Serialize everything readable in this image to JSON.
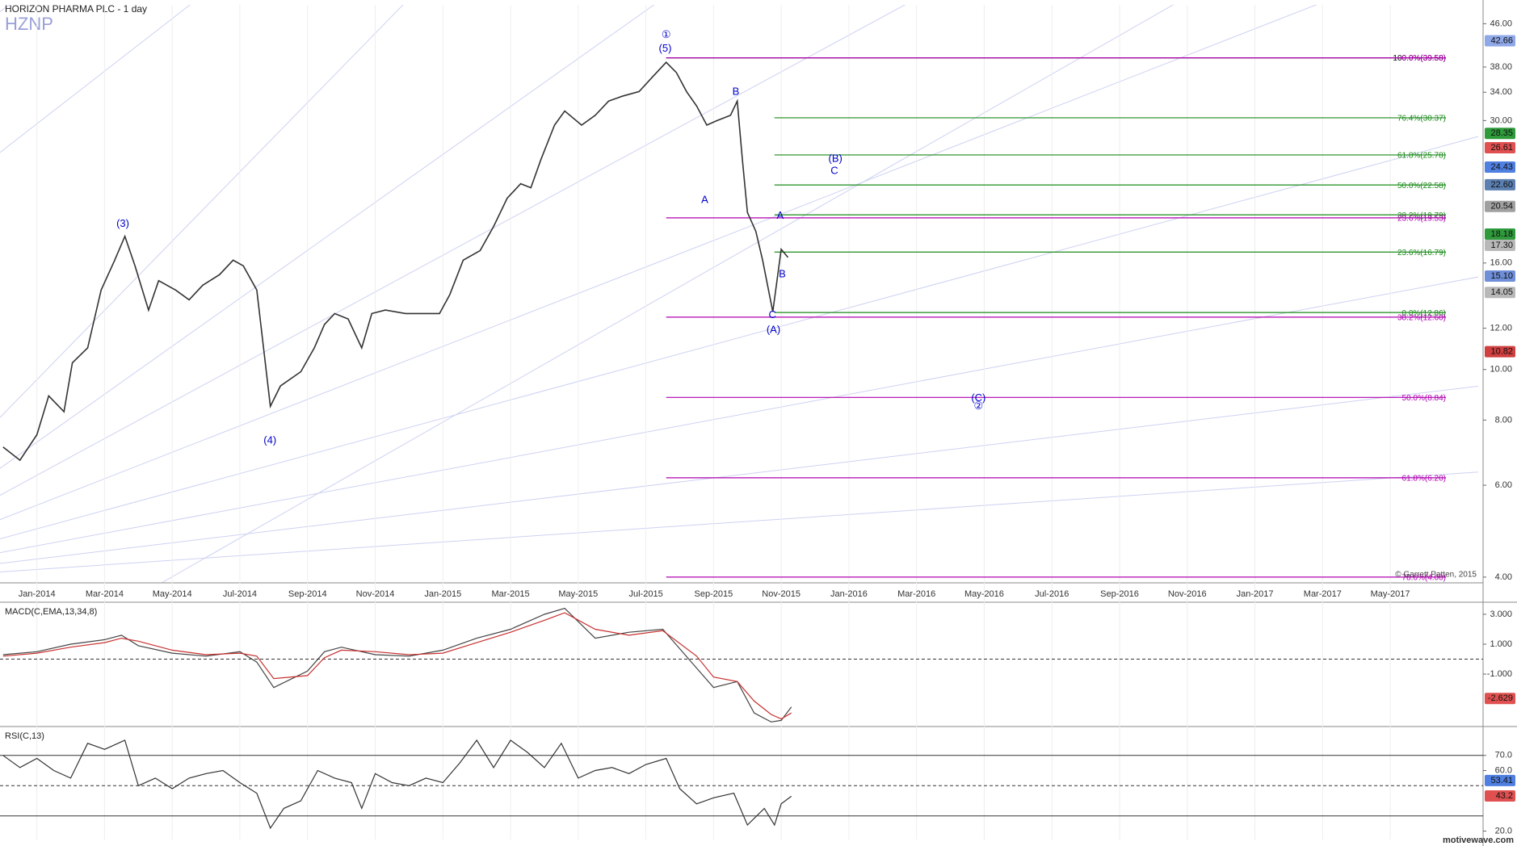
{
  "header": {
    "title": "HORIZON PHARMA PLC - 1 day",
    "symbol": "HZNP"
  },
  "chart_data": [
    {
      "type": "line",
      "log_scale": true,
      "xlim": [
        -1.09,
        42.6
      ],
      "xticks": [
        {
          "value": 0,
          "label": "Jan-2014"
        },
        {
          "value": 2,
          "label": "Mar-2014"
        },
        {
          "value": 4,
          "label": "May-2014"
        },
        {
          "value": 6,
          "label": "Jul-2014"
        },
        {
          "value": 8,
          "label": "Sep-2014"
        },
        {
          "value": 10,
          "label": "Nov-2014"
        },
        {
          "value": 12,
          "label": "Jan-2015"
        },
        {
          "value": 14,
          "label": "Mar-2015"
        },
        {
          "value": 16,
          "label": "May-2015"
        },
        {
          "value": 18,
          "label": "Jul-2015"
        },
        {
          "value": 20,
          "label": "Sep-2015"
        },
        {
          "value": 22,
          "label": "Nov-2015"
        },
        {
          "value": 24,
          "label": "Jan-2016"
        },
        {
          "value": 26,
          "label": "Mar-2016"
        },
        {
          "value": 28,
          "label": "May-2016"
        },
        {
          "value": 30,
          "label": "Jul-2016"
        },
        {
          "value": 32,
          "label": "Sep-2016"
        },
        {
          "value": 34,
          "label": "Nov-2016"
        },
        {
          "value": 36,
          "label": "Jan-2017"
        },
        {
          "value": 38,
          "label": "Mar-2017"
        },
        {
          "value": 40,
          "label": "May-2017"
        }
      ],
      "ylim": [
        3.9,
        50
      ],
      "yticks": [
        {
          "value": 46,
          "label": "46.00"
        },
        {
          "value": 38,
          "label": "38.00"
        },
        {
          "value": 34,
          "label": "34.00"
        },
        {
          "value": 30,
          "label": "30.00"
        },
        {
          "value": 16,
          "label": "16.00"
        },
        {
          "value": 12,
          "label": "12.00"
        },
        {
          "value": 10,
          "label": "10.00"
        },
        {
          "value": 8,
          "label": "8.00"
        },
        {
          "value": 6,
          "label": "6.00"
        },
        {
          "value": 4,
          "label": "4.00"
        }
      ],
      "x": [
        -1.0,
        -0.5,
        0,
        0.35,
        0.8,
        1.05,
        1.5,
        1.9,
        2.3,
        2.6,
        2.9,
        3.3,
        3.6,
        4.1,
        4.5,
        4.9,
        5.4,
        5.8,
        6.1,
        6.5,
        6.9,
        7.2,
        7.8,
        8.2,
        8.5,
        8.8,
        9.2,
        9.6,
        9.9,
        10.3,
        10.9,
        11.5,
        11.9,
        12.2,
        12.6,
        13.1,
        13.5,
        13.9,
        14.3,
        14.6,
        14.9,
        15.3,
        15.6,
        16.1,
        16.5,
        16.9,
        17.3,
        17.8,
        18.2,
        18.6,
        18.9,
        19.2,
        19.5,
        19.8,
        20.1,
        20.5,
        20.7,
        20.85,
        21.0,
        21.25,
        21.45,
        21.75,
        22.0,
        22.2
      ],
      "series": [
        {
          "color": "#333333",
          "values": [
            7.1,
            6.7,
            7.5,
            8.9,
            8.3,
            10.3,
            11.0,
            14.2,
            16.2,
            18.0,
            15.8,
            13.0,
            14.8,
            14.2,
            13.6,
            14.5,
            15.2,
            16.2,
            15.8,
            14.2,
            8.5,
            9.3,
            9.9,
            11.0,
            12.2,
            12.8,
            12.5,
            11.0,
            12.8,
            13.0,
            12.8,
            12.8,
            12.8,
            13.9,
            16.2,
            16.9,
            18.8,
            21.3,
            22.7,
            22.3,
            25.3,
            29.4,
            31.3,
            29.4,
            30.7,
            32.7,
            33.4,
            34.1,
            36.4,
            38.8,
            37.1,
            34.1,
            32.0,
            29.4,
            30.0,
            30.7,
            32.7,
            25.3,
            20.0,
            18.4,
            16.2,
            12.9,
            17.0,
            16.4
          ]
        }
      ],
      "fib_levels": [
        {
          "label": "100.0%(39.58)",
          "value": 39.58,
          "color": "#000000",
          "start": 18.6
        },
        {
          "label": "0.0%(39.58)",
          "value": 39.58,
          "color": "#b000b0",
          "start": 18.6
        },
        {
          "label": "76.4%(30.37)",
          "value": 30.37,
          "color": "#1a8a1a",
          "start": 21.8
        },
        {
          "label": "61.8%(25.78)",
          "value": 25.78,
          "color": "#1a8a1a",
          "start": 21.8
        },
        {
          "label": "50.0%(22.58)",
          "value": 22.58,
          "color": "#1a8a1a",
          "start": 21.8
        },
        {
          "label": "38.2%(19.79)",
          "value": 19.79,
          "color": "#1a8a1a",
          "start": 21.8
        },
        {
          "label": "23.6%(19.53)",
          "value": 19.53,
          "color": "#b000b0",
          "start": 18.6
        },
        {
          "label": "23.6%(16.79)",
          "value": 16.79,
          "color": "#1a8a1a",
          "start": 21.8
        },
        {
          "label": "0.0%(12.86)",
          "value": 12.86,
          "color": "#1a8a1a",
          "start": 21.8
        },
        {
          "label": "38.2%(12.60)",
          "value": 12.6,
          "color": "#b000b0",
          "start": 18.6
        },
        {
          "label": "50.0%(8.84)",
          "value": 8.84,
          "color": "#b000b0",
          "start": 18.6
        },
        {
          "label": "61.8%(6.20)",
          "value": 6.2,
          "color": "#b000b0",
          "start": 18.6
        },
        {
          "label": "78.6%(4.00)",
          "value": 4.0,
          "color": "#b000b0",
          "start": 18.6
        }
      ],
      "annotations": [
        {
          "text": "①",
          "x": 18.6,
          "y": 43.7,
          "color": "#0000cc"
        },
        {
          "text": "(5)",
          "x": 18.57,
          "y": 41.2,
          "color": "#0000cc"
        },
        {
          "text": "B",
          "x": 20.66,
          "y": 34.0,
          "color": "#0000cc"
        },
        {
          "text": "A",
          "x": 19.74,
          "y": 21.1,
          "color": "#0000cc"
        },
        {
          "text": "(B)",
          "x": 23.6,
          "y": 25.3,
          "color": "#0000cc"
        },
        {
          "text": "C",
          "x": 23.57,
          "y": 24.0,
          "color": "#0000cc"
        },
        {
          "text": "(3)",
          "x": 2.54,
          "y": 19.0,
          "color": "#0000cc"
        },
        {
          "text": "(4)",
          "x": 6.89,
          "y": 7.3,
          "color": "#0000cc"
        },
        {
          "text": "A",
          "x": 21.97,
          "y": 19.7,
          "color": "#0000cc"
        },
        {
          "text": "B",
          "x": 22.03,
          "y": 15.2,
          "color": "#0000cc"
        },
        {
          "text": "C",
          "x": 21.74,
          "y": 12.7,
          "color": "#0000cc"
        },
        {
          "text": "(A)",
          "x": 21.77,
          "y": 11.9,
          "color": "#0000cc"
        },
        {
          "text": "(C)",
          "x": 27.83,
          "y": 8.8,
          "color": "#0000cc"
        },
        {
          "text": "②",
          "x": 27.83,
          "y": 8.5,
          "color": "#0000cc"
        }
      ],
      "price_labels": [
        {
          "value": 42.66,
          "label": "42.66",
          "color": "#8fa8e8"
        },
        {
          "value": 28.35,
          "label": "28.35",
          "color": "#2e9a3a"
        },
        {
          "value": 26.61,
          "label": "26.61",
          "color": "#e05050"
        },
        {
          "value": 24.43,
          "label": "24.43",
          "color": "#4f7fe0"
        },
        {
          "value": 22.6,
          "label": "22.60",
          "color": "#5a7fb0"
        },
        {
          "value": 20.54,
          "label": "20.54",
          "color": "#a0a0a0"
        },
        {
          "value": 18.18,
          "label": "18.18",
          "color": "#2e9a3a"
        },
        {
          "value": 17.3,
          "label": "17.30",
          "color": "#b8b8b8"
        },
        {
          "value": 15.1,
          "label": "15.10",
          "color": "#6f8fd8"
        },
        {
          "value": 14.05,
          "label": "14.05",
          "color": "#b8b8b8"
        },
        {
          "value": 10.82,
          "label": "10.82",
          "color": "#d04040"
        }
      ],
      "copyright": "© Garrett Patten, 2015"
    },
    {
      "type": "line",
      "title": "MACD(C,EMA,13,34,8)",
      "ylim": [
        -4.4,
        3.7
      ],
      "yticks": [
        {
          "value": 3,
          "label": "3.000"
        },
        {
          "value": 1,
          "label": "1.000"
        },
        {
          "value": -1,
          "label": "-1.000"
        }
      ],
      "reference_lines": [
        {
          "value": 0,
          "dashed": true
        }
      ],
      "x": [
        -1,
        0,
        1,
        2,
        2.5,
        3,
        4,
        5,
        6,
        6.5,
        7,
        8,
        8.5,
        9,
        10,
        11,
        12,
        13,
        14,
        15,
        15.6,
        16.5,
        17.5,
        18.5,
        19.5,
        20,
        20.7,
        21.2,
        21.7,
        22,
        22.3
      ],
      "series": [
        {
          "color": "#444444",
          "values": [
            0.3,
            0.5,
            1.0,
            1.3,
            1.6,
            0.9,
            0.4,
            0.2,
            0.5,
            -0.2,
            -1.9,
            -0.8,
            0.5,
            0.8,
            0.3,
            0.2,
            0.6,
            1.4,
            2.0,
            3.0,
            3.4,
            1.4,
            1.8,
            2.0,
            -0.6,
            -1.9,
            -1.5,
            -3.6,
            -4.2,
            -4.1,
            -3.2
          ]
        },
        {
          "color": "#c83030",
          "values": [
            0.2,
            0.4,
            0.8,
            1.1,
            1.4,
            1.2,
            0.6,
            0.3,
            0.4,
            0.2,
            -1.3,
            -1.1,
            0.1,
            0.6,
            0.5,
            0.3,
            0.4,
            1.1,
            1.8,
            2.6,
            3.1,
            2.0,
            1.6,
            1.9,
            0.2,
            -1.2,
            -1.5,
            -2.8,
            -3.7,
            -4.0,
            -3.6
          ]
        }
      ],
      "price_labels": [
        {
          "value": -2.629,
          "label": "-2.629",
          "color": "#e05050"
        }
      ]
    },
    {
      "type": "line",
      "title": "RSI(C,13)",
      "ylim": [
        14.4,
        88
      ],
      "yticks": [
        {
          "value": 70,
          "label": "70.0"
        },
        {
          "value": 60,
          "label": "60.0"
        },
        {
          "value": 20,
          "label": "20.0"
        }
      ],
      "reference_lines": [
        {
          "value": 70,
          "dashed": false
        },
        {
          "value": 50,
          "dashed": true
        },
        {
          "value": 30,
          "dashed": false
        }
      ],
      "x": [
        -1,
        -0.5,
        0,
        0.5,
        1,
        1.5,
        2,
        2.6,
        3,
        3.5,
        4,
        4.5,
        5,
        5.5,
        6,
        6.5,
        6.9,
        7.3,
        7.8,
        8.3,
        8.8,
        9.3,
        9.6,
        10,
        10.5,
        11,
        11.5,
        12,
        12.5,
        13,
        13.5,
        14,
        14.5,
        15,
        15.5,
        16,
        16.5,
        17,
        17.5,
        18,
        18.6,
        19,
        19.5,
        20,
        20.6,
        21,
        21.5,
        21.8,
        22,
        22.3
      ],
      "series": [
        {
          "color": "#333333",
          "values": [
            70,
            62,
            68,
            60,
            55,
            78,
            74,
            80,
            50,
            55,
            48,
            55,
            58,
            60,
            52,
            45,
            22,
            35,
            40,
            60,
            55,
            52,
            35,
            58,
            52,
            50,
            55,
            52,
            65,
            80,
            62,
            80,
            72,
            62,
            78,
            55,
            60,
            62,
            58,
            64,
            68,
            48,
            38,
            42,
            45,
            24,
            35,
            24,
            38,
            43
          ]
        }
      ],
      "price_labels": [
        {
          "value": 53.41,
          "label": "53.41",
          "color": "#4f7fe0"
        },
        {
          "value": 43.2,
          "label": "43.2",
          "color": "#e05050"
        }
      ]
    }
  ],
  "footer": {
    "brand": "motivewave.com"
  }
}
